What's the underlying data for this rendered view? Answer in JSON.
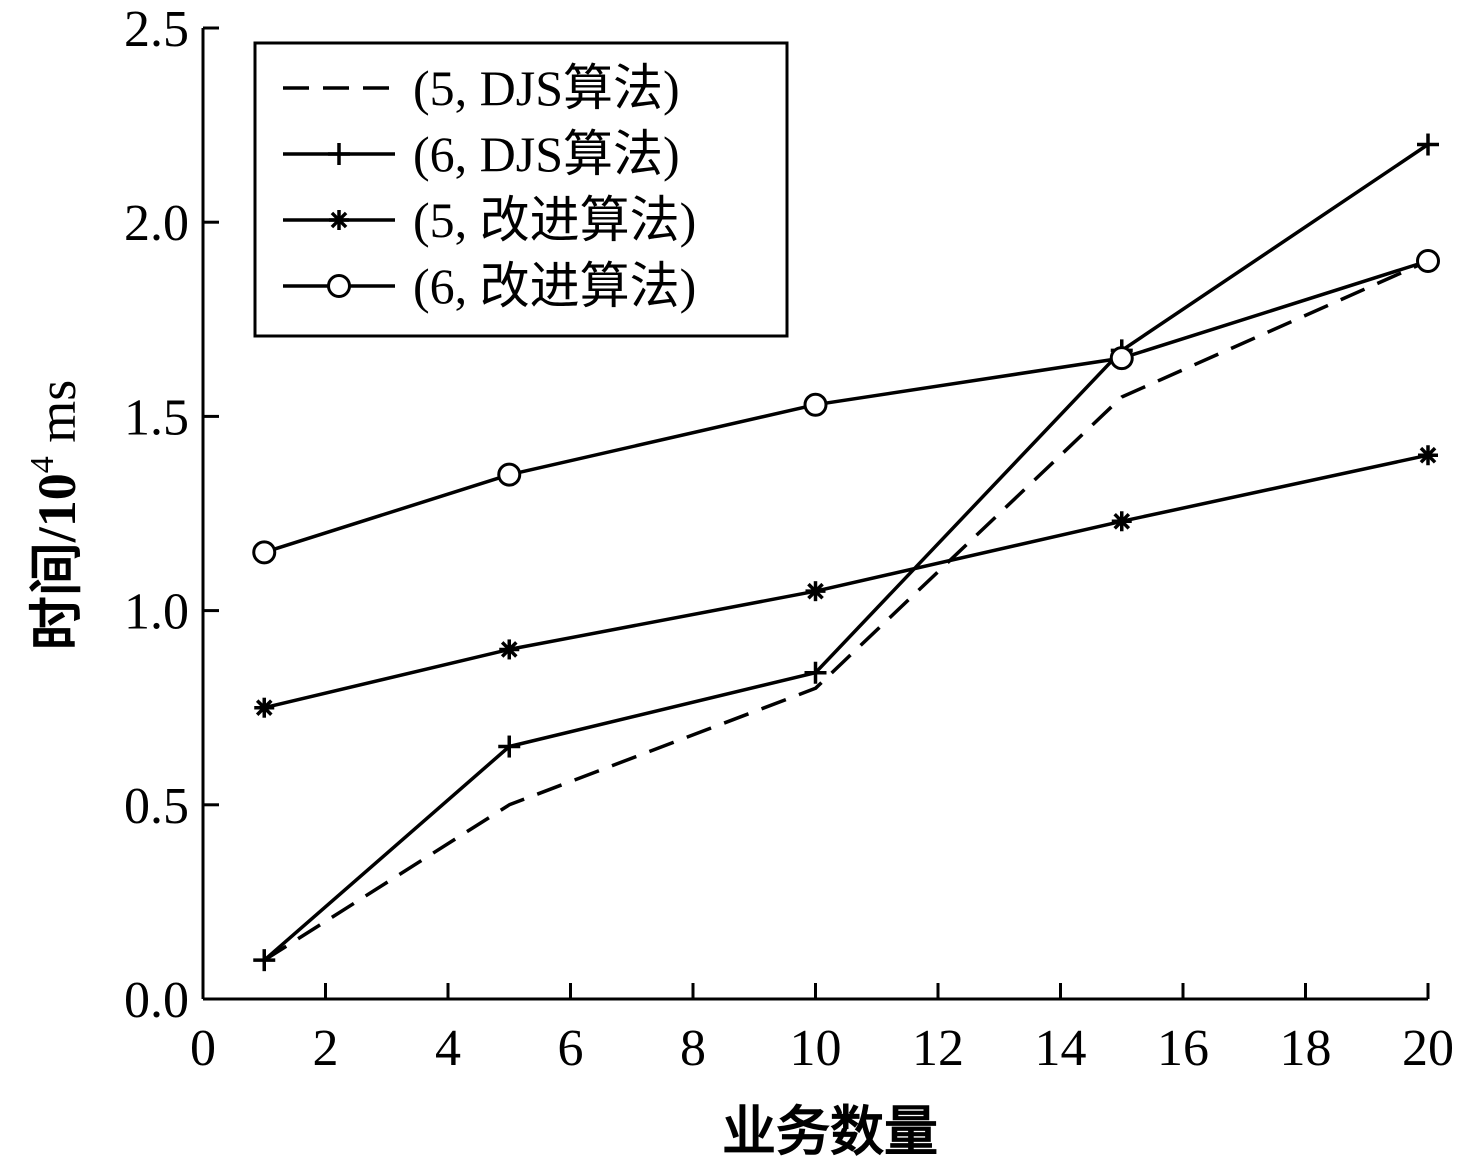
{
  "chart_data": {
    "type": "line",
    "xlabel": "业务数量",
    "ylabel_main": "时间/10",
    "ylabel_sup": "4",
    "ylabel_unit": " ms",
    "xlim": [
      0,
      20
    ],
    "ylim": [
      0,
      2.5
    ],
    "xticks": [
      0,
      2,
      4,
      6,
      8,
      10,
      12,
      14,
      16,
      18,
      20
    ],
    "xtick_labels": [
      "0",
      "2",
      "4",
      "6",
      "8",
      "10",
      "12",
      "14",
      "16",
      "18",
      "20"
    ],
    "yticks": [
      0,
      0.5,
      1.0,
      1.5,
      2.0,
      2.5
    ],
    "ytick_labels": [
      "0.0",
      "0.5",
      "1.0",
      "1.5",
      "2.0",
      "2.5"
    ],
    "grid": false,
    "legend_position": "top-left",
    "x": [
      1,
      5,
      10,
      15,
      20
    ],
    "series": [
      {
        "name": "(5, DJS算法)",
        "marker": "none",
        "dash": "dashed",
        "values": [
          0.1,
          0.5,
          0.8,
          1.55,
          1.9
        ]
      },
      {
        "name": "(6, DJS算法)",
        "marker": "plus",
        "dash": "solid",
        "values": [
          0.1,
          0.65,
          0.84,
          1.67,
          2.2
        ]
      },
      {
        "name": "(5, 改进算法)",
        "marker": "asterisk",
        "dash": "solid",
        "values": [
          0.75,
          0.9,
          1.05,
          1.23,
          1.4
        ]
      },
      {
        "name": "(6, 改进算法)",
        "marker": "circle",
        "dash": "solid",
        "values": [
          1.15,
          1.35,
          1.53,
          1.65,
          1.9
        ]
      }
    ],
    "line_color": "#000000"
  }
}
